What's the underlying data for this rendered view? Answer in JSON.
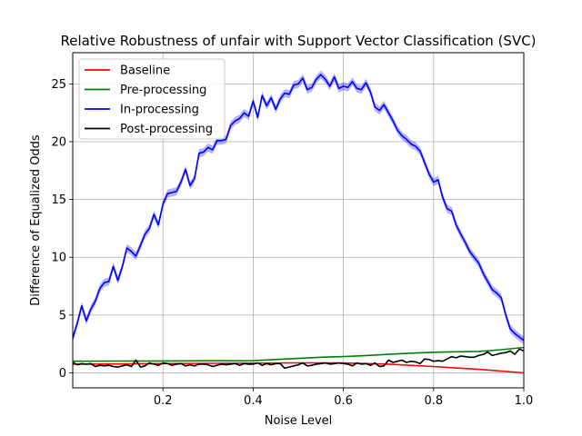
{
  "chart_data": {
    "type": "line",
    "title": "Relative Robustness of unfair with Support Vector Classification (SVC)",
    "xlabel": "Noise Level",
    "ylabel": "Difference of Equalized Odds",
    "xlim": [
      0.0,
      1.0
    ],
    "ylim": [
      -1.3,
      27.7
    ],
    "xticks": [
      0.2,
      0.4,
      0.6,
      0.8,
      1.0
    ],
    "xtick_labels": [
      "0.2",
      "0.4",
      "0.6",
      "0.8",
      "1.0"
    ],
    "yticks": [
      0,
      5,
      10,
      15,
      20,
      25
    ],
    "ytick_labels": [
      "0",
      "5",
      "10",
      "15",
      "20",
      "25"
    ],
    "grid": true,
    "legend_position": "top-left",
    "series": [
      {
        "name": "Baseline",
        "color": "#ff0000",
        "x": [
          0.0,
          0.1,
          0.2,
          0.3,
          0.4,
          0.5,
          0.6,
          0.7,
          0.8,
          0.9,
          1.0
        ],
        "y": [
          0.75,
          0.77,
          0.8,
          0.82,
          0.84,
          0.86,
          0.85,
          0.75,
          0.55,
          0.3,
          0.0
        ]
      },
      {
        "name": "Pre-processing",
        "color": "#008000",
        "x": [
          0.0,
          0.1,
          0.2,
          0.3,
          0.4,
          0.45,
          0.5,
          0.55,
          0.6,
          0.65,
          0.7,
          0.75,
          0.8,
          0.85,
          0.9,
          0.95,
          1.0
        ],
        "y": [
          1.0,
          1.02,
          1.03,
          1.04,
          1.05,
          1.15,
          1.25,
          1.35,
          1.4,
          1.5,
          1.6,
          1.7,
          1.78,
          1.82,
          1.85,
          2.0,
          2.2
        ]
      },
      {
        "name": "In-processing",
        "color": "#0000ff",
        "band": 0.35,
        "x": [
          0.0,
          0.01,
          0.02,
          0.03,
          0.04,
          0.05,
          0.06,
          0.07,
          0.08,
          0.09,
          0.1,
          0.11,
          0.12,
          0.13,
          0.14,
          0.15,
          0.16,
          0.17,
          0.18,
          0.19,
          0.2,
          0.21,
          0.22,
          0.23,
          0.24,
          0.25,
          0.26,
          0.27,
          0.28,
          0.29,
          0.3,
          0.31,
          0.32,
          0.33,
          0.34,
          0.35,
          0.36,
          0.37,
          0.38,
          0.39,
          0.4,
          0.41,
          0.42,
          0.43,
          0.44,
          0.45,
          0.46,
          0.47,
          0.48,
          0.49,
          0.5,
          0.51,
          0.52,
          0.53,
          0.54,
          0.55,
          0.56,
          0.57,
          0.58,
          0.59,
          0.6,
          0.61,
          0.62,
          0.63,
          0.64,
          0.65,
          0.66,
          0.67,
          0.68,
          0.69,
          0.7,
          0.71,
          0.72,
          0.73,
          0.74,
          0.75,
          0.76,
          0.77,
          0.78,
          0.79,
          0.8,
          0.81,
          0.82,
          0.83,
          0.84,
          0.85,
          0.86,
          0.87,
          0.88,
          0.89,
          0.9,
          0.91,
          0.92,
          0.93,
          0.94,
          0.95,
          0.96,
          0.97,
          0.98,
          0.99,
          1.0
        ],
        "y": [
          3.0,
          4.3,
          5.8,
          4.5,
          5.5,
          6.2,
          7.3,
          7.8,
          7.9,
          9.2,
          8.0,
          9.2,
          10.8,
          10.5,
          10.1,
          11.0,
          12.0,
          12.5,
          13.7,
          12.8,
          14.6,
          15.5,
          15.6,
          15.7,
          16.5,
          17.6,
          16.2,
          16.8,
          19.0,
          19.1,
          19.5,
          19.3,
          20.1,
          20.1,
          20.2,
          21.4,
          21.8,
          22.0,
          22.5,
          22.2,
          23.5,
          22.1,
          24.0,
          23.1,
          23.8,
          22.8,
          23.7,
          24.2,
          24.1,
          24.9,
          25.0,
          25.5,
          24.5,
          24.7,
          25.4,
          25.8,
          25.4,
          24.8,
          25.6,
          24.6,
          24.8,
          24.7,
          25.2,
          24.6,
          24.5,
          25.1,
          24.3,
          23.0,
          22.7,
          23.2,
          22.5,
          21.8,
          21.0,
          20.5,
          20.2,
          19.8,
          19.6,
          19.2,
          18.2,
          17.2,
          16.5,
          16.7,
          15.2,
          14.2,
          14.0,
          12.8,
          12.0,
          11.3,
          10.5,
          10.0,
          9.5,
          8.6,
          7.9,
          7.2,
          6.9,
          6.5,
          5.0,
          3.8,
          3.4,
          3.1,
          2.8
        ]
      },
      {
        "name": "Post-processing",
        "color": "#000000",
        "x": [
          0.0,
          0.01,
          0.02,
          0.03,
          0.04,
          0.05,
          0.06,
          0.07,
          0.08,
          0.09,
          0.1,
          0.11,
          0.12,
          0.13,
          0.14,
          0.15,
          0.16,
          0.17,
          0.18,
          0.19,
          0.2,
          0.21,
          0.22,
          0.23,
          0.24,
          0.25,
          0.26,
          0.27,
          0.28,
          0.29,
          0.3,
          0.31,
          0.32,
          0.33,
          0.34,
          0.35,
          0.36,
          0.37,
          0.38,
          0.39,
          0.4,
          0.41,
          0.42,
          0.43,
          0.44,
          0.45,
          0.46,
          0.47,
          0.48,
          0.49,
          0.5,
          0.51,
          0.52,
          0.53,
          0.54,
          0.55,
          0.56,
          0.57,
          0.58,
          0.59,
          0.6,
          0.61,
          0.62,
          0.63,
          0.64,
          0.65,
          0.66,
          0.67,
          0.68,
          0.69,
          0.7,
          0.71,
          0.72,
          0.73,
          0.74,
          0.75,
          0.76,
          0.77,
          0.78,
          0.79,
          0.8,
          0.81,
          0.82,
          0.83,
          0.84,
          0.85,
          0.86,
          0.87,
          0.88,
          0.89,
          0.9,
          0.91,
          0.92,
          0.93,
          0.94,
          0.95,
          0.96,
          0.97,
          0.98,
          0.99,
          1.0
        ],
        "y": [
          0.9,
          0.7,
          0.8,
          0.75,
          0.8,
          0.55,
          0.65,
          0.6,
          0.65,
          0.55,
          0.5,
          0.6,
          0.7,
          0.55,
          1.1,
          0.5,
          0.6,
          0.85,
          0.75,
          0.65,
          0.85,
          0.8,
          0.65,
          0.75,
          0.8,
          0.6,
          0.7,
          0.6,
          0.75,
          0.75,
          0.7,
          0.55,
          0.65,
          0.75,
          0.7,
          0.75,
          0.8,
          0.65,
          0.8,
          0.75,
          0.75,
          0.85,
          0.65,
          0.8,
          0.7,
          0.8,
          0.8,
          0.4,
          0.5,
          0.6,
          0.7,
          0.85,
          0.6,
          0.65,
          0.75,
          0.8,
          0.85,
          0.75,
          0.8,
          0.85,
          0.8,
          0.75,
          0.6,
          0.85,
          0.75,
          0.8,
          0.65,
          0.85,
          0.55,
          0.6,
          1.1,
          0.9,
          1.0,
          1.1,
          0.9,
          1.0,
          0.95,
          0.8,
          1.2,
          1.15,
          1.0,
          1.05,
          1.0,
          1.2,
          1.4,
          1.3,
          1.45,
          1.4,
          1.35,
          1.35,
          1.5,
          1.6,
          1.8,
          1.5,
          1.6,
          1.7,
          1.75,
          1.9,
          1.6,
          2.05,
          1.9
        ]
      }
    ]
  }
}
